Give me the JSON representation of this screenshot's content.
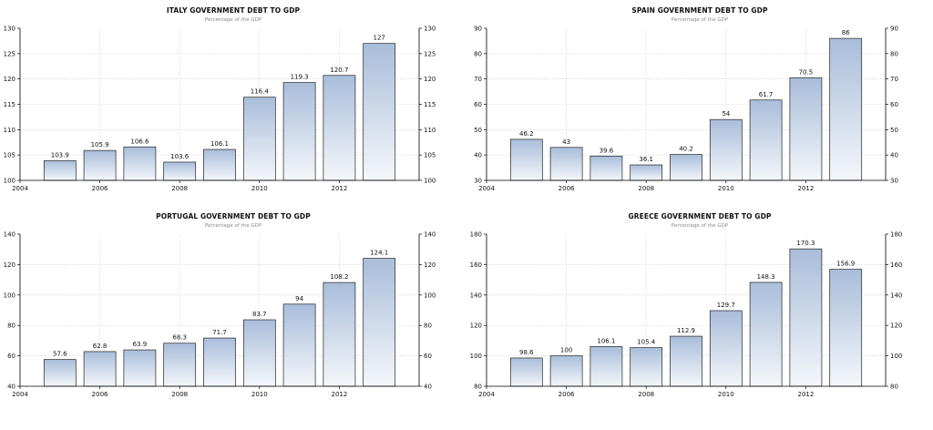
{
  "chart_data": [
    {
      "type": "bar",
      "title": "ITALY GOVERNMENT DEBT TO GDP",
      "subtitle": "Percentage of the GDP",
      "x": [
        2005,
        2006,
        2007,
        2008,
        2009,
        2010,
        2011,
        2012,
        2013
      ],
      "values": [
        103.9,
        105.9,
        106.6,
        103.6,
        106.1,
        116.4,
        119.3,
        120.7,
        127
      ],
      "value_labels": [
        "103.9",
        "105.9",
        "106.6",
        "103.6",
        "106.1",
        "116.4",
        "119.3",
        "120.7",
        "127"
      ],
      "xticks": [
        "2004",
        "2006",
        "2008",
        "2010",
        "2012"
      ],
      "xlim": [
        2004,
        2014
      ],
      "ylim": [
        100,
        130
      ],
      "yticks": [
        "100",
        "105",
        "110",
        "115",
        "120",
        "125",
        "130"
      ],
      "grid": true,
      "legend": "none"
    },
    {
      "type": "bar",
      "title": "SPAIN GOVERNMENT DEBT TO GDP",
      "subtitle": "Percentage of the GDP",
      "x": [
        2005,
        2006,
        2007,
        2008,
        2009,
        2010,
        2011,
        2012,
        2013
      ],
      "values": [
        46.2,
        43,
        39.6,
        36.1,
        40.2,
        54,
        61.7,
        70.5,
        86
      ],
      "value_labels": [
        "46.2",
        "43",
        "39.6",
        "36.1",
        "40.2",
        "54",
        "61.7",
        "70.5",
        "86"
      ],
      "xticks": [
        "2004",
        "2006",
        "2008",
        "2010",
        "2012"
      ],
      "xlim": [
        2004,
        2014
      ],
      "ylim": [
        30,
        90
      ],
      "yticks": [
        "30",
        "40",
        "50",
        "60",
        "70",
        "80",
        "90"
      ],
      "grid": true,
      "legend": "none"
    },
    {
      "type": "bar",
      "title": "PORTUGAL GOVERNMENT DEBT TO GDP",
      "subtitle": "Percentage of the GDP",
      "x": [
        2005,
        2006,
        2007,
        2008,
        2009,
        2010,
        2011,
        2012,
        2013
      ],
      "values": [
        57.6,
        62.8,
        63.9,
        68.3,
        71.7,
        83.7,
        94,
        108.2,
        124.1
      ],
      "value_labels": [
        "57.6",
        "62.8",
        "63.9",
        "68.3",
        "71.7",
        "83.7",
        "94",
        "108.2",
        "124.1"
      ],
      "xticks": [
        "2004",
        "2006",
        "2008",
        "2010",
        "2012"
      ],
      "xlim": [
        2004,
        2014
      ],
      "ylim": [
        40,
        140
      ],
      "yticks": [
        "40",
        "60",
        "80",
        "100",
        "120",
        "140"
      ],
      "grid": true,
      "legend": "none"
    },
    {
      "type": "bar",
      "title": "GREECE GOVERNMENT DEBT TO GDP",
      "subtitle": "Percentage of the GDP",
      "x": [
        2005,
        2006,
        2007,
        2008,
        2009,
        2010,
        2011,
        2012,
        2013
      ],
      "values": [
        98.6,
        100,
        106.1,
        105.4,
        112.9,
        129.7,
        148.3,
        170.3,
        156.9
      ],
      "value_labels": [
        "98.6",
        "100",
        "106.1",
        "105.4",
        "112.9",
        "129.7",
        "148.3",
        "170.3",
        "156.9"
      ],
      "xticks": [
        "2004",
        "2006",
        "2008",
        "2010",
        "2012"
      ],
      "xlim": [
        2004,
        2014
      ],
      "ylim": [
        80,
        180
      ],
      "yticks": [
        "80",
        "100",
        "120",
        "140",
        "160",
        "180"
      ],
      "grid": true,
      "legend": "none"
    }
  ],
  "colors": {
    "bar_top": "#a9bdda",
    "bar_bottom": "#f4f7fb",
    "bar_stroke": "#222222",
    "grid": "#cfcfcf",
    "axis": "#000000",
    "text": "#111111",
    "subtitle": "#8a8a8a"
  }
}
